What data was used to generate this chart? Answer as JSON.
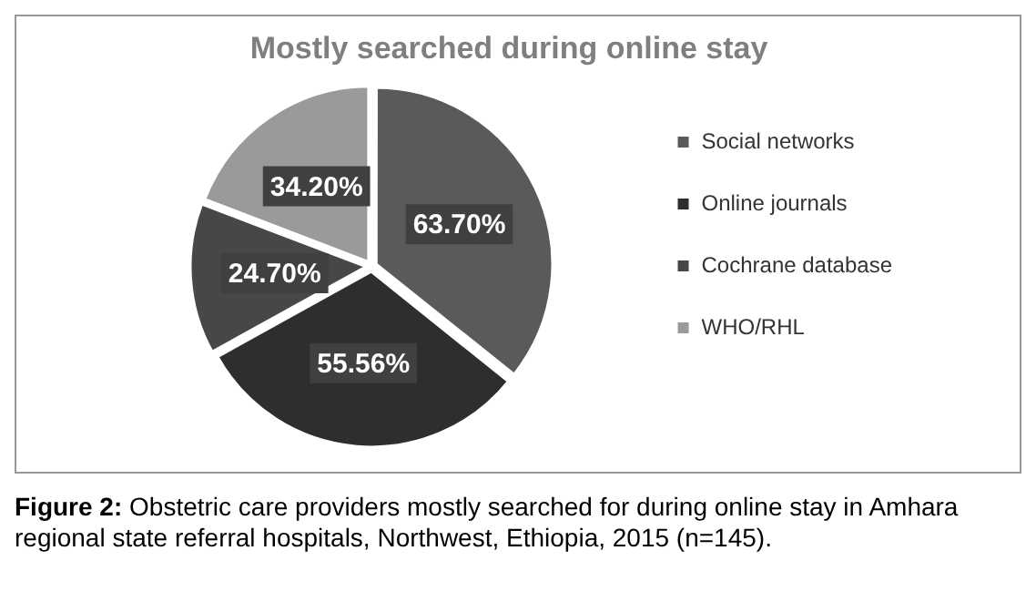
{
  "chart_data": {
    "type": "pie",
    "title": "Mostly searched during online stay",
    "categories": [
      "Social networks",
      "Online journals",
      "Cochrane database",
      "WHO/RHL"
    ],
    "values": [
      63.7,
      55.56,
      24.7,
      34.2
    ],
    "value_labels": [
      "63.70%",
      "55.56%",
      "24.70%",
      "34.20%"
    ],
    "colors": [
      "#5a5a5a",
      "#2e2e2e",
      "#474747",
      "#9a9a9a"
    ],
    "legend": "right",
    "annotations": [
      "Figure 2: Obstetric care providers mostly searched for during online stay in Amhara regional state referral hospitals, Northwest, Ethiopia, 2015 (n=145)."
    ]
  }
}
